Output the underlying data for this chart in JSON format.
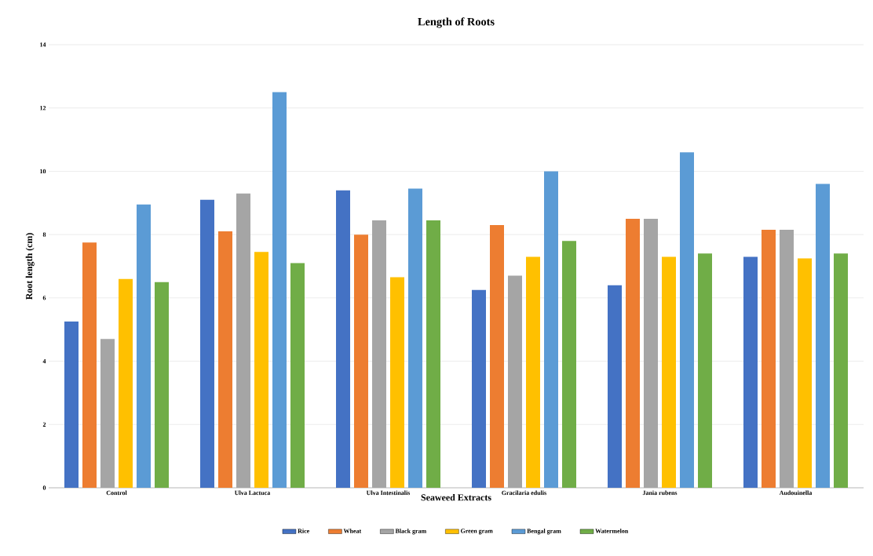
{
  "chart_data": {
    "type": "bar",
    "title": "Length of Roots",
    "xlabel": "Seaweed Extracts",
    "ylabel": "Root length (cm)",
    "categories": [
      "Control",
      "Ulva Lactuca",
      "Ulva Intestinalis",
      "Gracilaria edulis",
      "Jania rubens",
      "Audouinella"
    ],
    "series": [
      {
        "name": "Rice",
        "color": "#4472c4",
        "values": [
          5.25,
          9.1,
          9.4,
          6.25,
          6.4,
          7.3
        ]
      },
      {
        "name": "Wheat",
        "color": "#ed7d31",
        "values": [
          7.75,
          8.1,
          8.0,
          8.3,
          8.5,
          8.15
        ]
      },
      {
        "name": "Black gram",
        "color": "#a5a5a5",
        "values": [
          4.7,
          9.3,
          8.45,
          6.7,
          8.5,
          8.15
        ]
      },
      {
        "name": "Green gram",
        "color": "#ffc000",
        "values": [
          6.6,
          7.45,
          6.65,
          7.3,
          7.3,
          7.25
        ]
      },
      {
        "name": "Bengal gram",
        "color": "#5b9bd5",
        "values": [
          8.95,
          12.5,
          9.45,
          10.0,
          10.6,
          9.6
        ]
      },
      {
        "name": "Watermelon",
        "color": "#70ad47",
        "values": [
          6.5,
          7.1,
          8.45,
          7.8,
          7.4,
          7.4
        ]
      }
    ],
    "ylim": [
      0,
      14
    ],
    "yticks": [
      0,
      2,
      4,
      6,
      8,
      10,
      12,
      14
    ],
    "grid": "y",
    "legend": "bottom"
  }
}
